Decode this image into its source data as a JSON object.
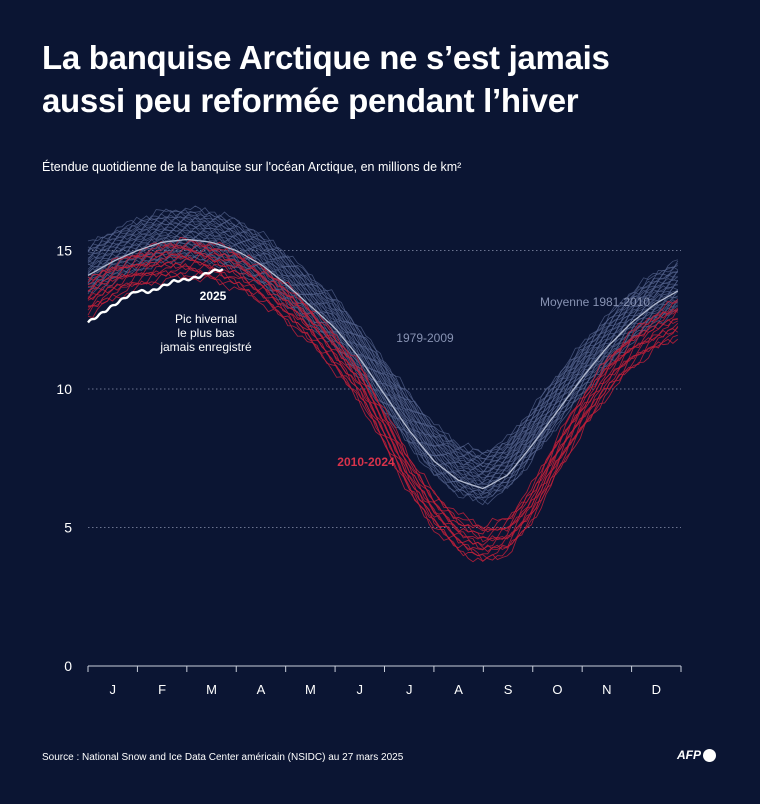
{
  "header": {
    "title_line1": "La banquise Arctique ne s’est jamais",
    "title_line2": "aussi peu reformée pendant l’hiver",
    "subtitle": "Étendue quotidienne de la banquise sur l'océan Arctique, en millions de km²"
  },
  "footer": {
    "source": "Source : National Snow and Ice Data Center américain (NSIDC) au 27 mars 2025",
    "logo": "AFP"
  },
  "colors": {
    "background": "#0b1533",
    "series_1979_2009": "#56648f",
    "series_2010_2024": "#c0203a",
    "average_1981_2010": "#b3bbd0",
    "series_2025": "#ffffff",
    "grid": "#8c94b0"
  },
  "annotations": {
    "label_2025": "2025",
    "record_line1": "Pic hivernal",
    "record_line2": "le plus bas",
    "record_line3": "jamais enregistré",
    "label_1979_2009": "1979-2009",
    "label_2010_2024": "2010-2024",
    "label_average": "Moyenne 1981-2010"
  },
  "chart_data": {
    "type": "line",
    "title": "La banquise Arctique ne s’est jamais aussi peu reformée pendant l’hiver",
    "subtitle": "Étendue quotidienne de la banquise sur l'océan Arctique, en millions de km²",
    "x_categories": [
      "J",
      "F",
      "M",
      "A",
      "M",
      "J",
      "J",
      "A",
      "S",
      "O",
      "N",
      "D"
    ],
    "y_ticks": [
      0,
      5,
      10,
      15
    ],
    "ylim": [
      0,
      16.5
    ],
    "grid": "horizontal dotted at 5, 10, 15",
    "legend": "inline labels",
    "series": [
      {
        "name": "2025",
        "x_months": [
          0.0,
          0.25,
          0.5,
          0.75,
          1.0,
          1.25,
          1.5,
          1.75,
          2.0,
          2.25,
          2.5,
          2.75
        ],
        "values": [
          12.4,
          12.7,
          13.0,
          13.3,
          13.55,
          13.5,
          13.7,
          13.9,
          13.95,
          14.05,
          14.25,
          14.33
        ]
      },
      {
        "name": "Moyenne 1981-2010",
        "x_months": [
          0,
          0.5,
          1,
          1.5,
          2,
          2.5,
          3,
          3.5,
          4,
          4.5,
          5,
          5.5,
          6,
          6.5,
          7,
          7.5,
          8,
          8.5,
          9,
          9.5,
          10,
          10.5,
          11,
          11.5,
          12
        ],
        "values": [
          14.1,
          14.6,
          15.0,
          15.3,
          15.4,
          15.3,
          15.0,
          14.5,
          13.8,
          13.0,
          12.2,
          11.1,
          9.8,
          8.5,
          7.4,
          6.7,
          6.4,
          6.9,
          8.0,
          9.2,
          10.4,
          11.5,
          12.4,
          13.1,
          13.6
        ]
      },
      {
        "name": "1979-2009",
        "x_months": [
          0,
          0.5,
          1,
          1.5,
          2,
          2.5,
          3,
          3.5,
          4,
          4.5,
          5,
          5.5,
          6,
          6.5,
          7,
          7.5,
          8,
          8.5,
          9,
          9.5,
          10,
          10.5,
          11,
          11.5,
          12
        ],
        "values": [
          14.3,
          14.8,
          15.2,
          15.5,
          15.6,
          15.5,
          15.2,
          14.7,
          14.0,
          13.2,
          12.4,
          11.3,
          10.1,
          8.9,
          7.8,
          7.1,
          6.8,
          7.3,
          8.4,
          9.6,
          10.7,
          11.7,
          12.6,
          13.3,
          13.8
        ],
        "spread": 0.55,
        "count": 31
      },
      {
        "name": "2010-2024",
        "x_months": [
          0,
          0.5,
          1,
          1.5,
          2,
          2.5,
          3,
          3.5,
          4,
          4.5,
          5,
          5.5,
          6,
          6.5,
          7,
          7.5,
          8,
          8.5,
          9,
          9.5,
          10,
          10.5,
          11,
          11.5,
          12
        ],
        "values": [
          13.3,
          13.9,
          14.3,
          14.6,
          14.7,
          14.6,
          14.3,
          13.8,
          13.1,
          12.3,
          11.3,
          10.2,
          8.6,
          6.9,
          5.6,
          4.8,
          4.4,
          4.7,
          5.9,
          7.6,
          9.1,
          10.4,
          11.4,
          12.1,
          12.6
        ],
        "spread": 0.4,
        "count": 15
      }
    ]
  }
}
